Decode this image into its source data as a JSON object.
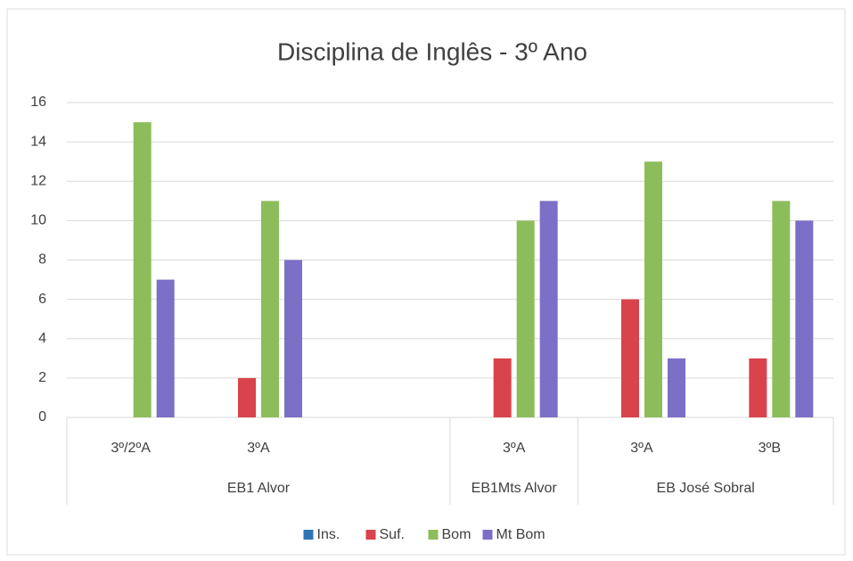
{
  "chart_data": {
    "type": "bar",
    "title": "Disciplina de Inglês - 3º Ano",
    "categories": [
      "3º/2ºA",
      "3ºA",
      null,
      "3ºA",
      "3ºA",
      "3ºB"
    ],
    "groups": [
      "EB1 Alvor",
      "EB1 Alvor",
      "EB1 Alvor",
      "EB1Mts Alvor",
      "EB José Sobral",
      "EB José Sobral"
    ],
    "series": [
      {
        "name": "Ins.",
        "color": "#2e75b6",
        "values": [
          0,
          0,
          null,
          0,
          0,
          0
        ]
      },
      {
        "name": "Suf.",
        "color": "#d9434b",
        "values": [
          0,
          2,
          null,
          3,
          6,
          3
        ]
      },
      {
        "name": "Bom",
        "color": "#8cbd5a",
        "values": [
          15,
          11,
          null,
          10,
          13,
          11
        ]
      },
      {
        "name": "Mt Bom",
        "color": "#7b6fc7",
        "values": [
          7,
          8,
          null,
          11,
          3,
          10
        ]
      }
    ],
    "ylim": [
      0,
      16
    ],
    "yticks": [
      0,
      2,
      4,
      6,
      8,
      10,
      12,
      14,
      16
    ],
    "grid": true,
    "legend": "bottom"
  }
}
